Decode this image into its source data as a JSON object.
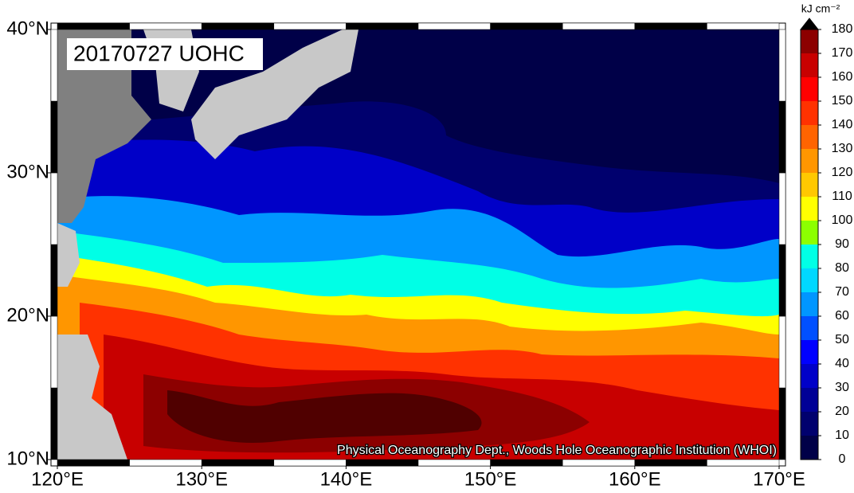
{
  "chart_data": {
    "type": "heatmap",
    "title": "20170727 UOHC",
    "credit": "Physical Oceanography Dept., Woods Hole Oceanographic Institution (WHOI)",
    "xlim": [
      120,
      170
    ],
    "xticks": [
      {
        "value": 120,
        "label": "120°E"
      },
      {
        "value": 130,
        "label": "130°E"
      },
      {
        "value": 140,
        "label": "140°E"
      },
      {
        "value": 150,
        "label": "150°E"
      },
      {
        "value": 160,
        "label": "160°E"
      },
      {
        "value": 170,
        "label": "170°E"
      }
    ],
    "ylim": [
      10,
      40
    ],
    "yticks": [
      {
        "value": 10,
        "label": "10°N"
      },
      {
        "value": 20,
        "label": "20°N"
      },
      {
        "value": 30,
        "label": "30°N"
      },
      {
        "value": 40,
        "label": "40°N"
      }
    ],
    "colorbar": {
      "label": "kJ cm⁻²",
      "lim": [
        0,
        180
      ],
      "ticks": [
        0,
        10,
        20,
        30,
        40,
        50,
        60,
        70,
        80,
        90,
        100,
        110,
        120,
        130,
        140,
        150,
        160,
        170,
        180
      ],
      "colors": [
        "#000048",
        "#00006e",
        "#000096",
        "#0000c8",
        "#0000ff",
        "#0050ff",
        "#0096ff",
        "#00d8ff",
        "#00ffe6",
        "#8cff00",
        "#ffff00",
        "#ffc800",
        "#ff9600",
        "#ff6400",
        "#ff3200",
        "#ff0000",
        "#c80000",
        "#8c0000",
        "#500000"
      ],
      "over_color": "#000000"
    }
  }
}
